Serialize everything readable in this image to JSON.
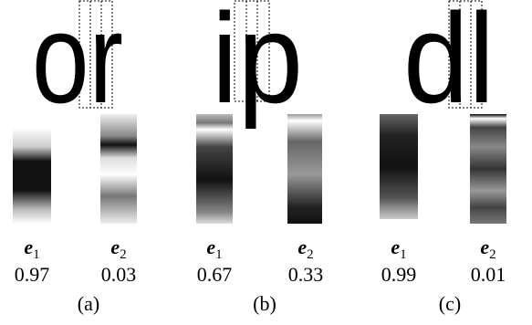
{
  "panels": [
    {
      "glyphs": "or",
      "caption": "(a)",
      "experts": [
        {
          "symbol": "e",
          "index": "1",
          "weight": 0.97
        },
        {
          "symbol": "e",
          "index": "2",
          "weight": 0.03
        }
      ]
    },
    {
      "glyphs": "ip",
      "caption": "(b)",
      "experts": [
        {
          "symbol": "e",
          "index": "1",
          "weight": 0.67
        },
        {
          "symbol": "e",
          "index": "2",
          "weight": 0.33
        }
      ]
    },
    {
      "glyphs": "dl",
      "caption": "(c)",
      "experts": [
        {
          "symbol": "e",
          "index": "1",
          "weight": 0.99
        },
        {
          "symbol": "e",
          "index": "2",
          "weight": 0.01
        }
      ]
    }
  ]
}
